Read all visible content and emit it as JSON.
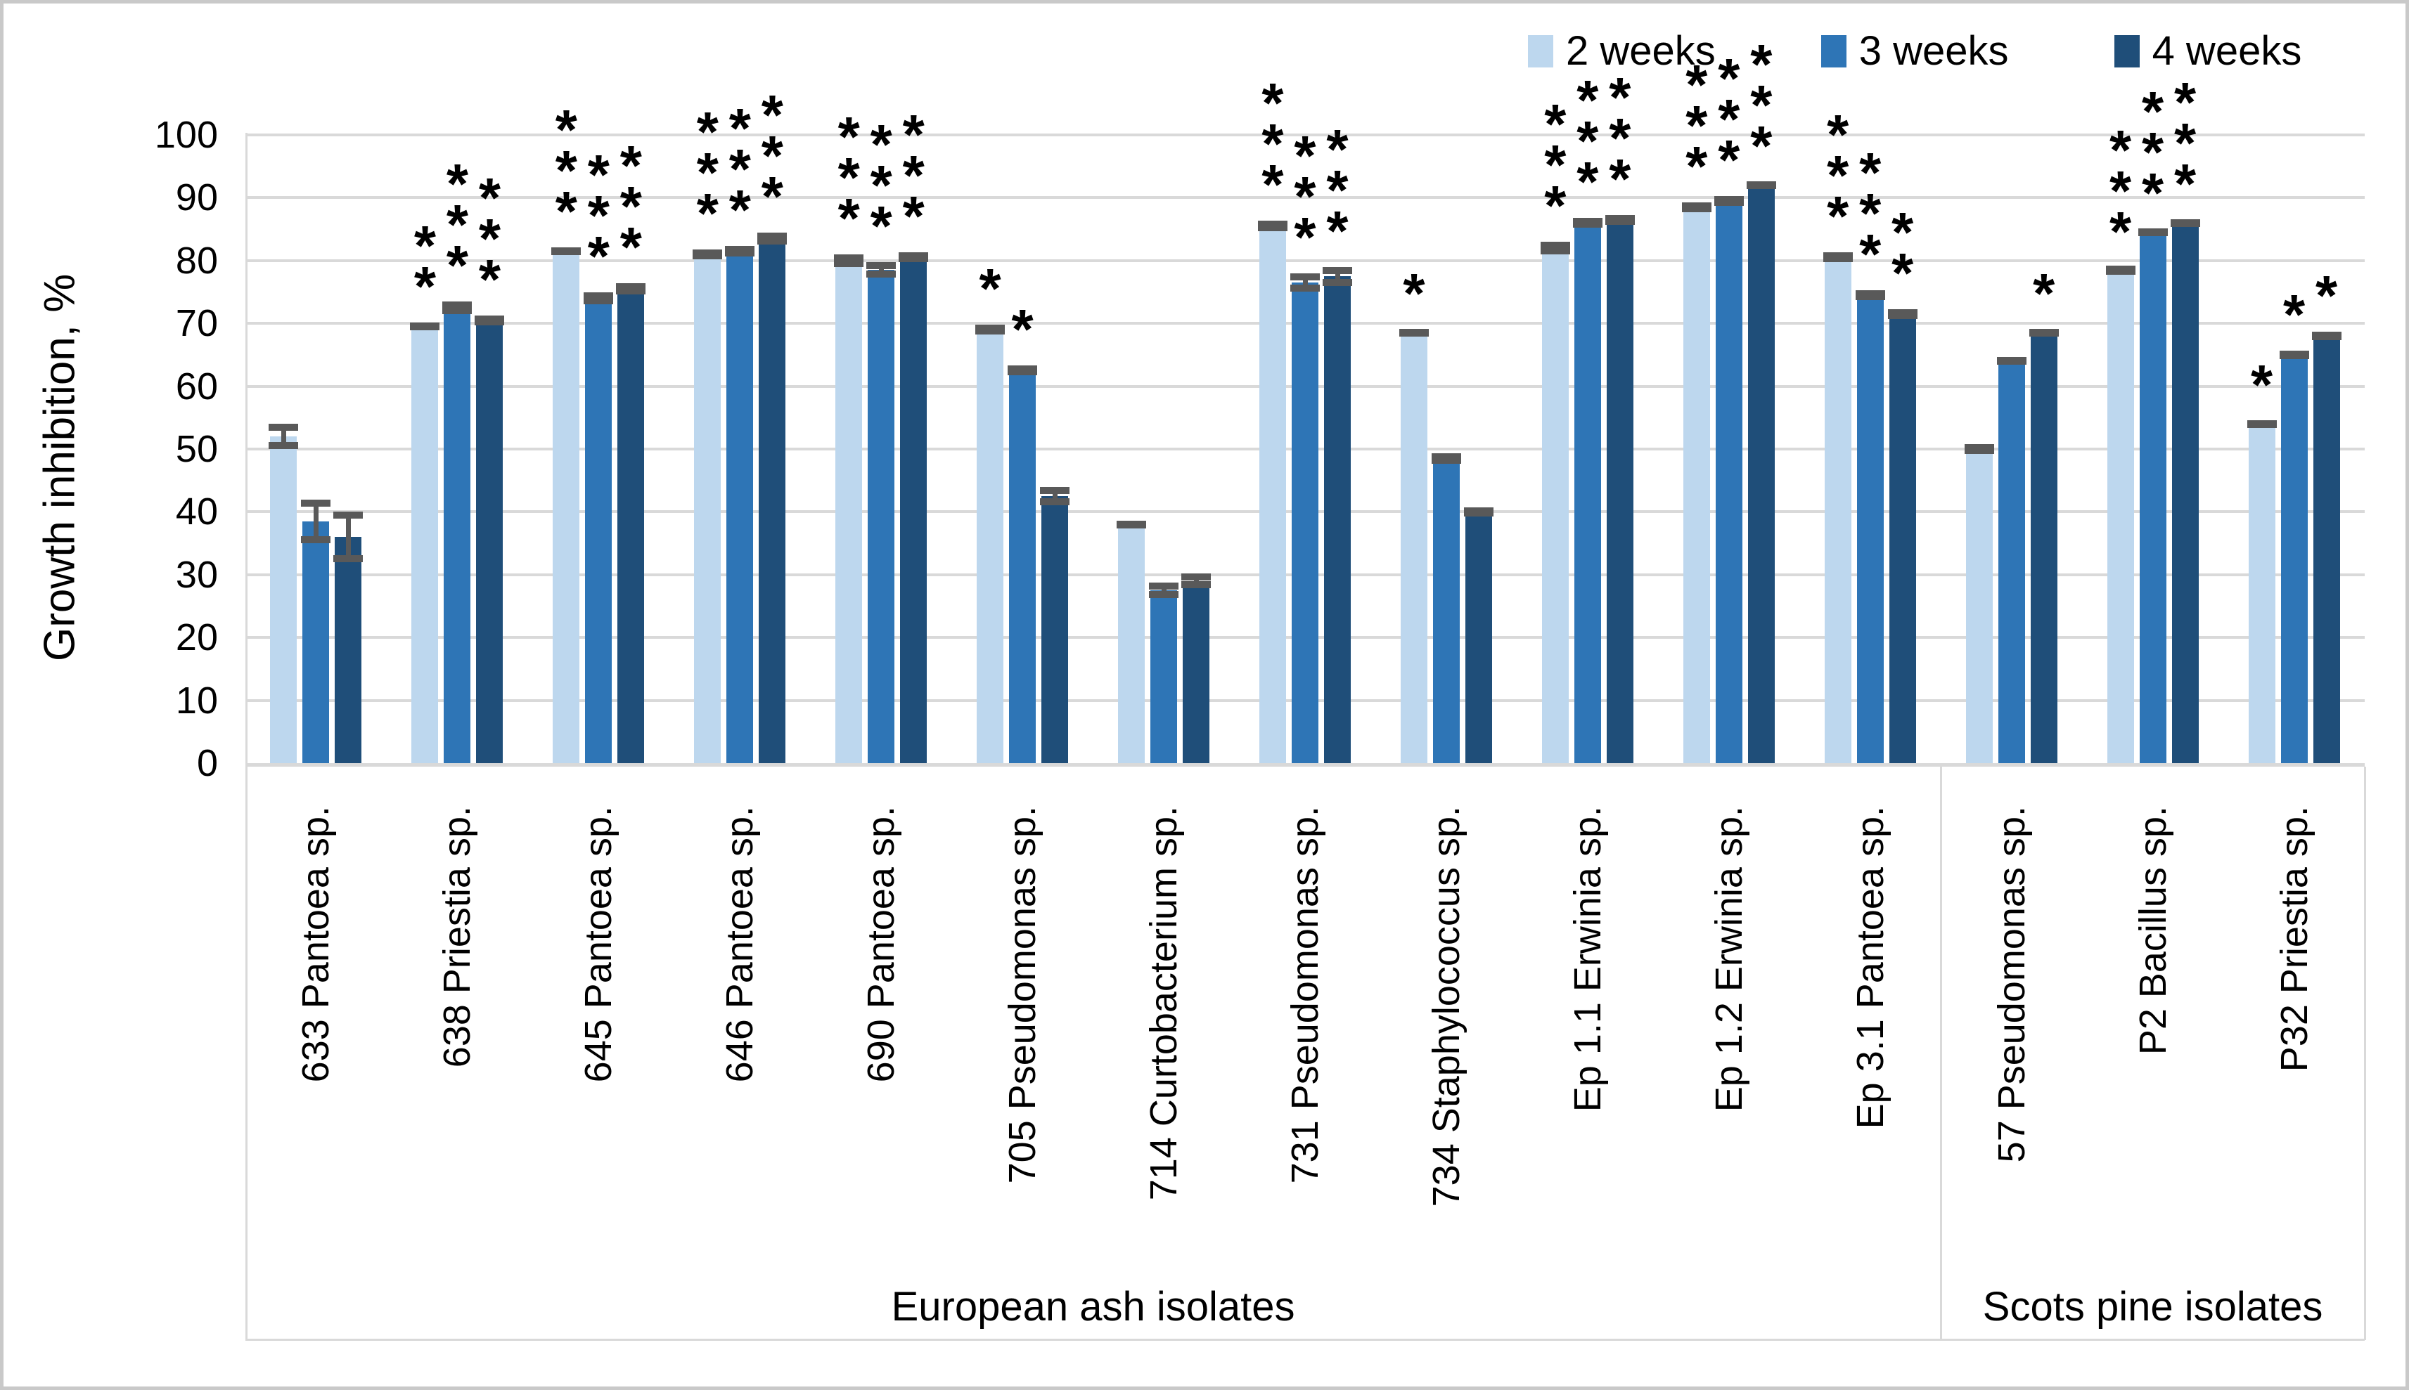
{
  "chart_data": {
    "type": "bar",
    "title": "",
    "xlabel": "",
    "ylabel": "Growth inhibition, %",
    "ylim": [
      0,
      100
    ],
    "ytick_step": 10,
    "grid": true,
    "legend_position": "top-right",
    "error_bars": true,
    "categories": [
      "633 Pantoea sp.",
      "638 Priestia sp.",
      "645 Pantoea sp.",
      "646 Pantoea sp.",
      "690 Pantoea sp.",
      "705 Pseudomonas sp.",
      "714 Curtobacterium sp.",
      "731 Pseudomonas sp.",
      "734 Staphylococcus sp.",
      "Ep 1.1 Erwinia sp.",
      "Ep 1.2 Erwinia sp.",
      "Ep 3.1 Pantoea sp.",
      "57 Pseudomonas sp.",
      "P2 Bacillus sp.",
      "P32 Priestia sp."
    ],
    "category_groups": [
      {
        "label": "European ash isolates",
        "span": 12
      },
      {
        "label": "Scots pine isolates",
        "span": 3
      }
    ],
    "series": [
      {
        "name": "2 weeks",
        "color": "#bdd7ee",
        "values": [
          52,
          69.5,
          81.5,
          81,
          80,
          69,
          38,
          85.5,
          68.5,
          82,
          88.5,
          80.5,
          50,
          78.5,
          54
        ],
        "errors": [
          2,
          0.6,
          0.6,
          0.8,
          1,
          0.8,
          0.5,
          0.8,
          0.5,
          1,
          0.8,
          0.8,
          0.8,
          0.4,
          0.5
        ],
        "sig": [
          "",
          "**",
          "***",
          "***",
          "***",
          "*",
          "",
          "***",
          "*",
          "***",
          "***",
          "***",
          "",
          "***",
          "*"
        ]
      },
      {
        "name": "3 weeks",
        "color": "#2e75b6",
        "values": [
          38.5,
          72.5,
          74,
          81.5,
          78.5,
          62.5,
          27.5,
          76.5,
          48.5,
          86,
          89.5,
          74.5,
          64,
          84.5,
          65
        ],
        "errors": [
          3.5,
          1,
          1,
          0.8,
          1.2,
          0.8,
          1.2,
          1.5,
          0.8,
          0.8,
          0.8,
          0.8,
          0.5,
          0.5,
          0.7
        ],
        "sig": [
          "",
          "***",
          "***",
          "***",
          "***",
          "*",
          "",
          "***",
          "",
          "***",
          "***",
          "***",
          "",
          "***",
          "*"
        ]
      },
      {
        "name": "4 weeks",
        "color": "#1f4e79",
        "values": [
          36,
          70.5,
          75.5,
          83.5,
          80.5,
          42.5,
          29,
          77.5,
          40,
          86.5,
          92,
          71.5,
          68.5,
          86,
          68
        ],
        "errors": [
          4,
          0.8,
          0.9,
          1,
          0.8,
          1.5,
          1.2,
          1.5,
          0.4,
          0.8,
          0.5,
          0.8,
          0.5,
          0.5,
          0.7
        ],
        "sig": [
          "",
          "***",
          "***",
          "***",
          "***",
          "",
          "",
          "***",
          "",
          "***",
          "***",
          "**",
          "*",
          "***",
          "*"
        ]
      }
    ],
    "significance_marks": "* ** *** shown stacked above bars",
    "error_bar_color": "#595959",
    "gridline_color": "#d9d9d9"
  }
}
